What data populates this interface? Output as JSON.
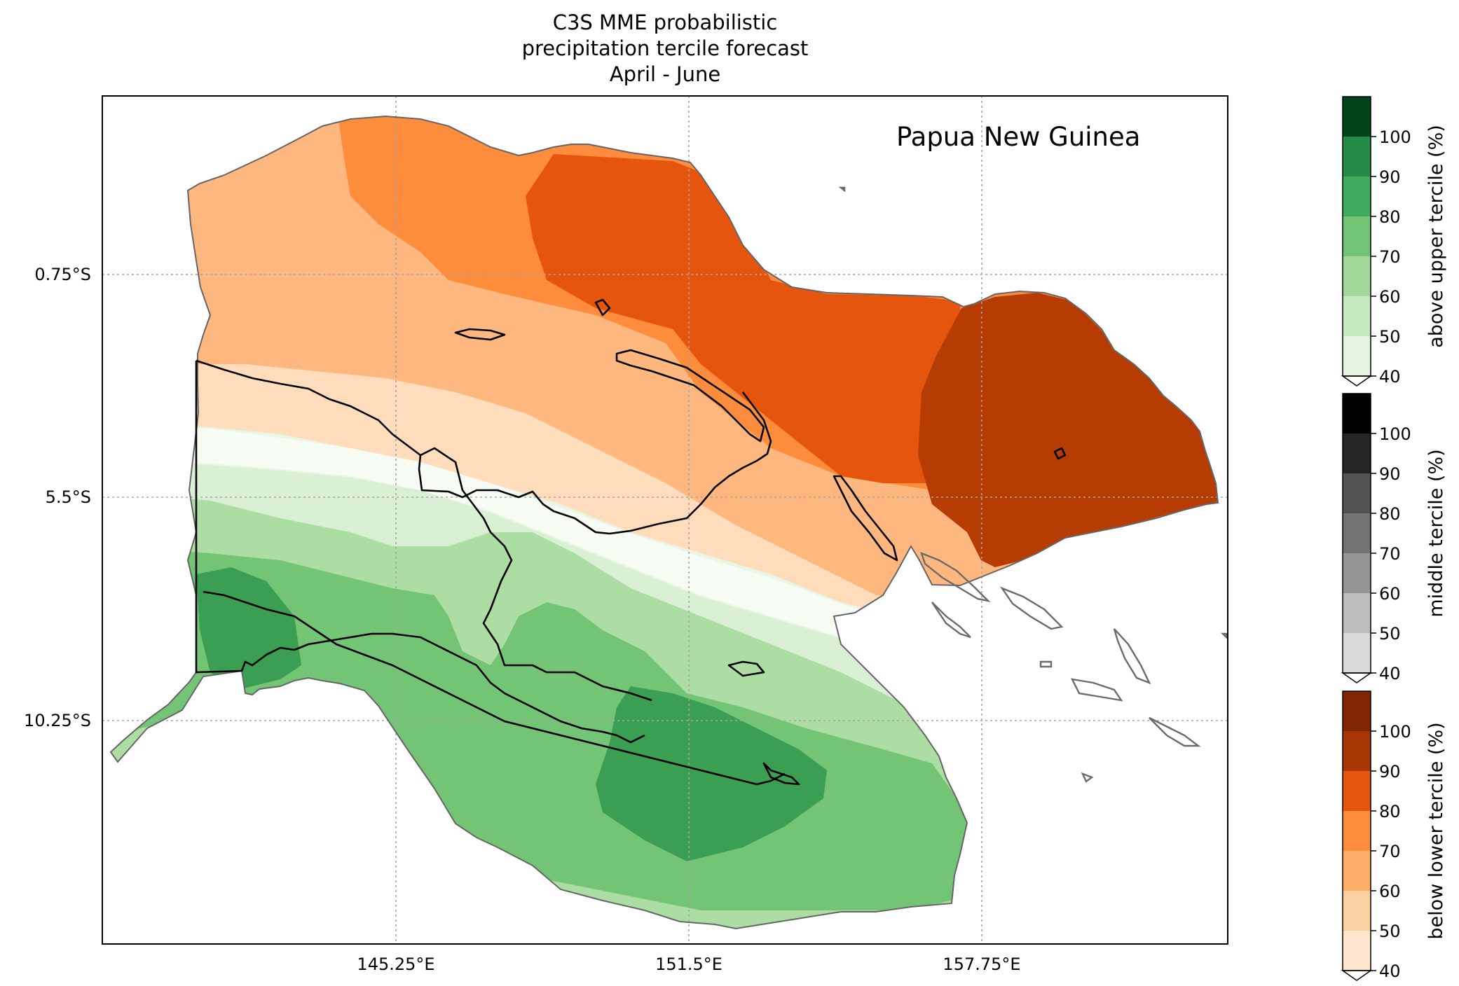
{
  "title": {
    "line1": "C3S MME probabilistic",
    "line2": "precipitation tercile forecast",
    "line3": "April - June"
  },
  "region_label": "Papua New Guinea",
  "axes": {
    "lat_ticks": [
      "0.75°S",
      "5.5°S",
      "10.25°S"
    ],
    "lon_ticks": [
      "145.25°E",
      "151.5°E",
      "157.75°E"
    ]
  },
  "colorbars": [
    {
      "label": "above upper tercile (%)",
      "ticks": [
        "40",
        "50",
        "60",
        "70",
        "80",
        "90",
        "100"
      ],
      "colors": [
        "#e5f5e0",
        "#c7e9c0",
        "#a1d99b",
        "#74c476",
        "#41ab5d",
        "#238b45",
        "#00441b"
      ]
    },
    {
      "label": "middle tercile (%)",
      "ticks": [
        "40",
        "50",
        "60",
        "70",
        "80",
        "90",
        "100"
      ],
      "colors": [
        "#d9d9d9",
        "#bdbdbd",
        "#969696",
        "#737373",
        "#525252",
        "#252525",
        "#000000"
      ]
    },
    {
      "label": "below lower tercile (%)",
      "ticks": [
        "40",
        "50",
        "60",
        "70",
        "80",
        "90",
        "100"
      ],
      "colors": [
        "#fee6ce",
        "#fdd0a2",
        "#fdae6b",
        "#fd8d3c",
        "#e6550d",
        "#a63603",
        "#7f2704"
      ]
    }
  ],
  "map_colors": {
    "below_40": "#fedcbc",
    "below_50": "#fdb77f",
    "below_60": "#fd8d3c",
    "below_70": "#e6550d",
    "below_80": "#b63c03",
    "above_40": "#daf0d4",
    "above_50": "#acdea4",
    "above_60": "#74c476",
    "above_70": "#3a9e53",
    "neutral": "#f6fbf4"
  }
}
